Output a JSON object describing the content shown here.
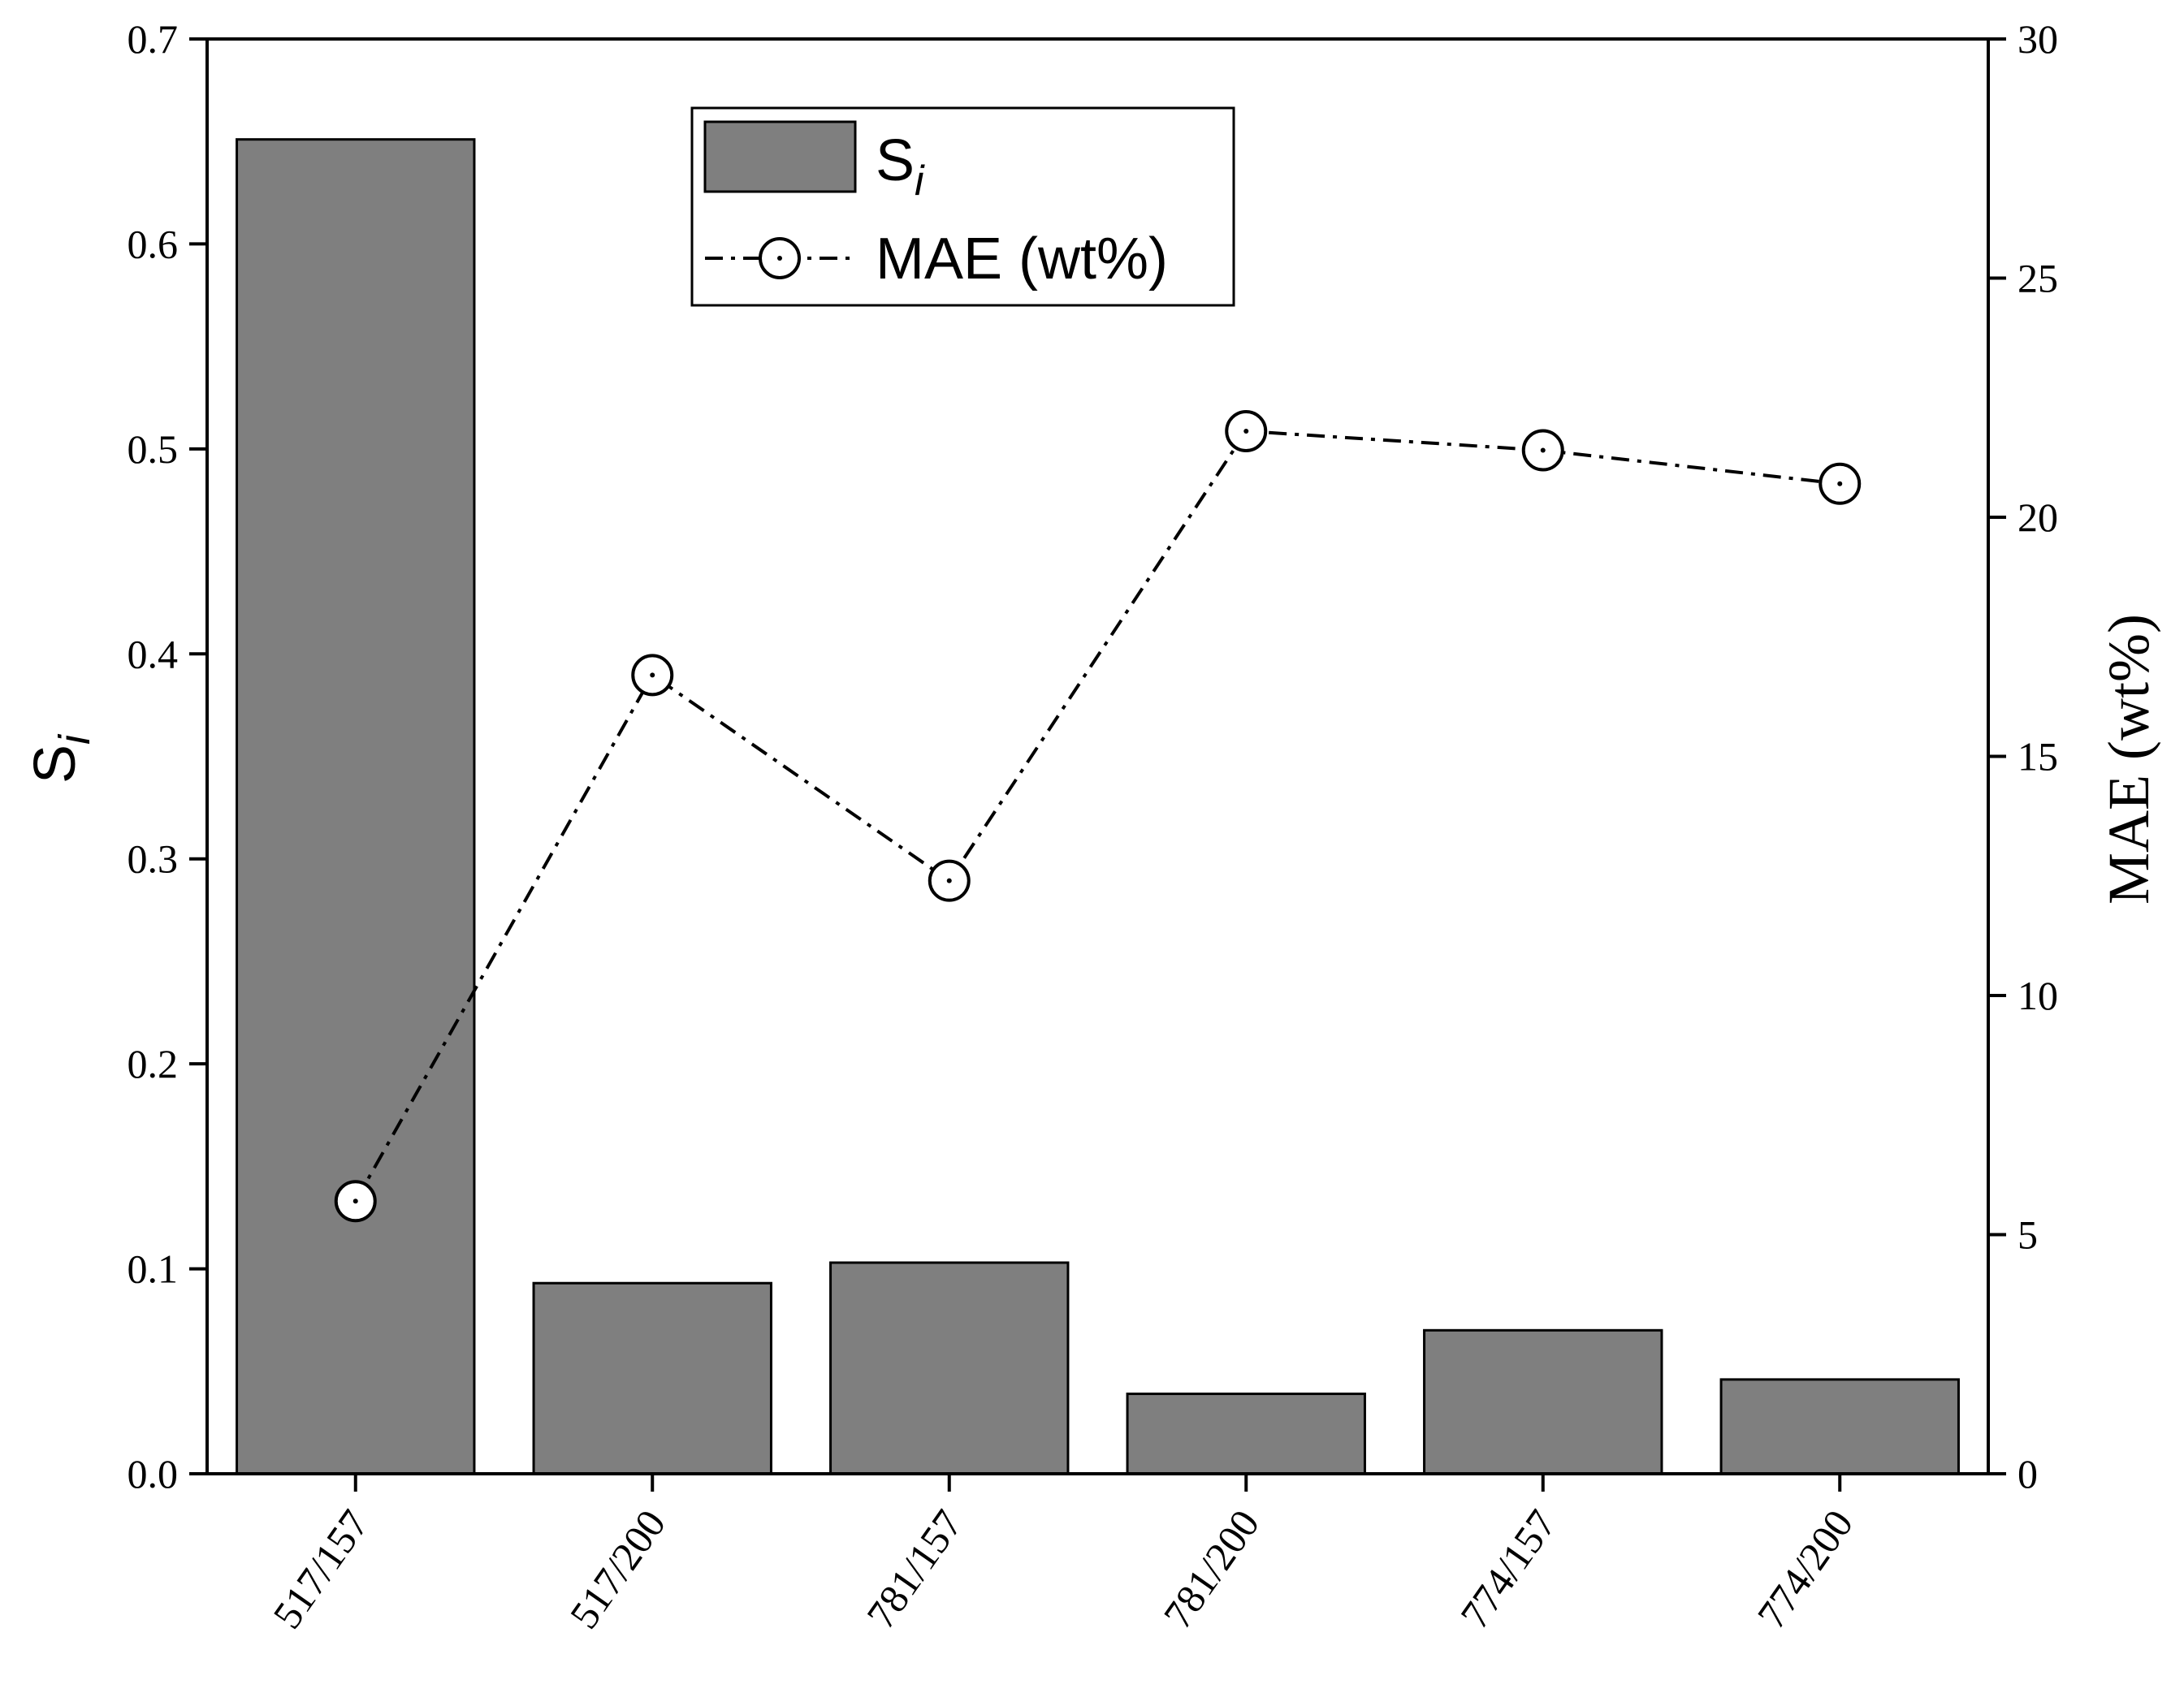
{
  "chart_data": {
    "type": "bar",
    "categories": [
      "517/157",
      "517/200",
      "781/157",
      "781/200",
      "774/157",
      "774/200"
    ],
    "series": [
      {
        "name": "Si",
        "type": "bar",
        "axis": "left",
        "values": [
          0.651,
          0.093,
          0.103,
          0.039,
          0.07,
          0.046
        ],
        "color": "#7f7f7f"
      },
      {
        "name": "MAE (wt%)",
        "type": "line",
        "axis": "right",
        "values": [
          5.7,
          16.7,
          12.4,
          21.8,
          21.4,
          20.7
        ],
        "color": "#000000",
        "line_style": "dash-dot",
        "marker": "open-circle"
      }
    ],
    "y_left": {
      "label_main": "S",
      "label_sub": "i",
      "lim": [
        0,
        0.7
      ],
      "ticks": [
        "0.0",
        "0.1",
        "0.2",
        "0.3",
        "0.4",
        "0.5",
        "0.6",
        "0.7"
      ]
    },
    "y_right": {
      "label": "MAE (wt%)",
      "lim": [
        0,
        30
      ],
      "ticks": [
        "0",
        "5",
        "10",
        "15",
        "20",
        "25",
        "30"
      ]
    },
    "legend": {
      "placement": "top-center",
      "bar_label_main": "S",
      "bar_label_sub": "i",
      "line_label": "MAE (wt%)"
    },
    "grid": false
  }
}
